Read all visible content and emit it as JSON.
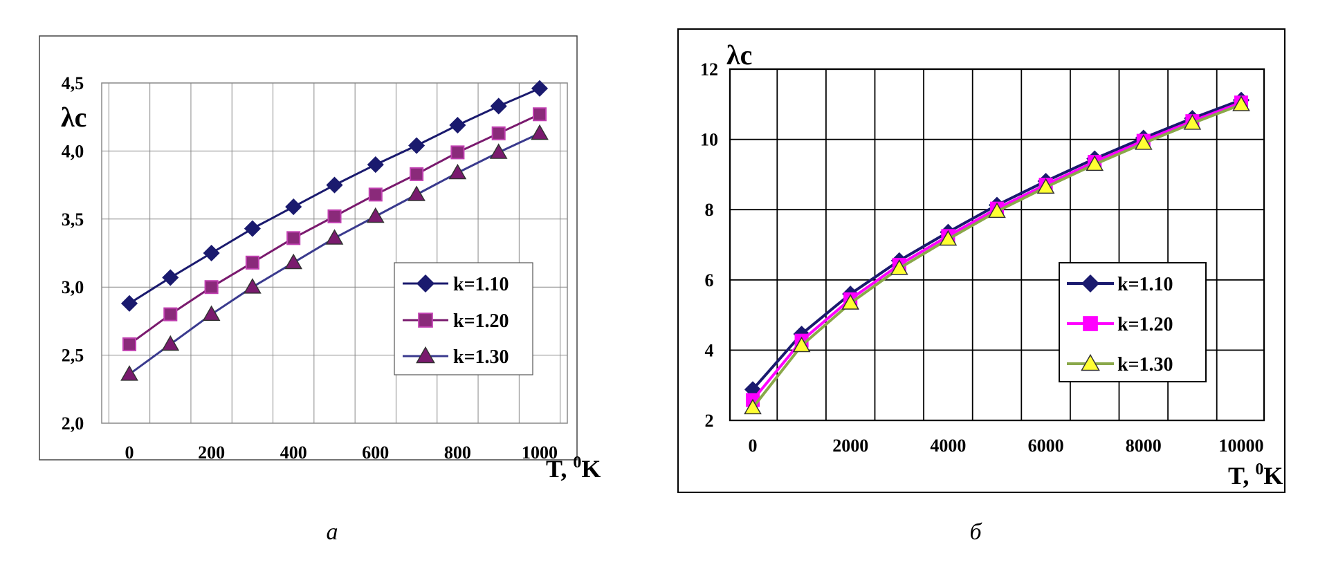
{
  "chart_data": [
    {
      "type": "line",
      "caption": "а",
      "ylabel": "λс",
      "xlabel_main": "T,",
      "xlabel_sup": "0",
      "xlabel_unit": "K",
      "xlim": [
        0,
        1000
      ],
      "ylim": [
        2.0,
        4.5
      ],
      "x_ticks": [
        "0",
        "200",
        "400",
        "600",
        "800",
        "1000"
      ],
      "y_ticks": [
        "2,0",
        "2,5",
        "3,0",
        "3,5",
        "4,0",
        "4,5"
      ],
      "grid": true,
      "legend_position": "right",
      "x": [
        0,
        100,
        200,
        300,
        400,
        500,
        600,
        700,
        800,
        900,
        1000
      ],
      "series": [
        {
          "name": "k=1.10",
          "marker": "diamond",
          "color": "#1a1a6e",
          "fill": "#1a1a6e",
          "values": [
            2.88,
            3.07,
            3.25,
            3.43,
            3.59,
            3.75,
            3.9,
            4.04,
            4.19,
            4.33,
            4.46
          ]
        },
        {
          "name": "k=1.20",
          "marker": "square",
          "color": "#7a1a6e",
          "fill": "#8a2a7a",
          "values": [
            2.58,
            2.8,
            3.0,
            3.18,
            3.36,
            3.52,
            3.68,
            3.83,
            3.99,
            4.13,
            4.27
          ]
        },
        {
          "name": "k=1.30",
          "marker": "triangle",
          "color": "#3a3a8e",
          "fill": "#7a1a6e",
          "values": [
            2.36,
            2.58,
            2.8,
            3.0,
            3.18,
            3.36,
            3.52,
            3.68,
            3.84,
            3.99,
            4.13
          ]
        }
      ]
    },
    {
      "type": "line",
      "caption": "б",
      "ylabel": "λс",
      "xlabel_main": "T,",
      "xlabel_sup": "0",
      "xlabel_unit": "K",
      "xlim": [
        0,
        10000
      ],
      "ylim": [
        2,
        12
      ],
      "x_ticks": [
        "0",
        "2000",
        "4000",
        "6000",
        "8000",
        "10000"
      ],
      "y_ticks": [
        "2",
        "4",
        "6",
        "8",
        "10",
        "12"
      ],
      "grid": true,
      "legend_position": "right",
      "x": [
        0,
        1000,
        2000,
        3000,
        4000,
        5000,
        6000,
        7000,
        8000,
        9000,
        10000
      ],
      "series": [
        {
          "name": "k=1.10",
          "marker": "diamond",
          "color": "#1a1a6e",
          "fill": "#1a1a6e",
          "values": [
            2.88,
            4.46,
            5.6,
            6.55,
            7.36,
            8.13,
            8.81,
            9.45,
            10.04,
            10.6,
            11.12
          ]
        },
        {
          "name": "k=1.20",
          "marker": "square",
          "color": "#ff00ff",
          "fill": "#ff00ff",
          "values": [
            2.58,
            4.27,
            5.45,
            6.43,
            7.25,
            8.03,
            8.71,
            9.36,
            9.96,
            10.52,
            11.05
          ]
        },
        {
          "name": "k=1.30",
          "marker": "triangle",
          "color": "#8aa84a",
          "fill": "#ffff33",
          "values": [
            2.36,
            4.13,
            5.34,
            6.33,
            7.16,
            7.95,
            8.64,
            9.29,
            9.89,
            10.46,
            10.99
          ]
        }
      ]
    }
  ]
}
